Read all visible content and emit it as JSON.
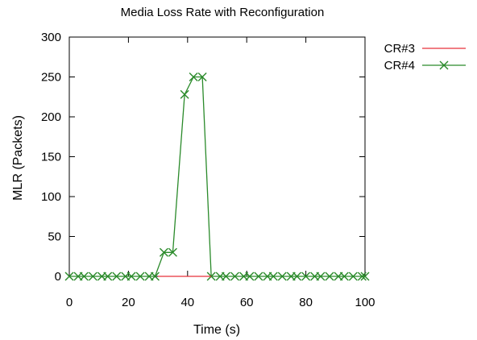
{
  "chart_data": {
    "type": "line",
    "title": "Media Loss Rate with Reconfiguration",
    "xlabel": "Time (s)",
    "ylabel": "MLR (Packets)",
    "xlim": [
      0,
      100
    ],
    "ylim": [
      0,
      300
    ],
    "xticks": [
      0,
      20,
      40,
      60,
      80,
      100
    ],
    "yticks": [
      0,
      50,
      100,
      150,
      200,
      250,
      300
    ],
    "grid": false,
    "legend_position": "top-right, outside plot",
    "series": [
      {
        "name": "CR#3",
        "color": "#e8313a",
        "marker": "none",
        "x": [
          30,
          48
        ],
        "y": [
          0,
          0
        ]
      },
      {
        "name": "CR#4",
        "color": "#2a8a2a",
        "marker": "x",
        "x": [
          0,
          3,
          5,
          8,
          11,
          13,
          16,
          19,
          21,
          24,
          27,
          29,
          32,
          35,
          39,
          42,
          45,
          48,
          51,
          53,
          56,
          59,
          61,
          64,
          67,
          69,
          72,
          75,
          77,
          80,
          83,
          85,
          88,
          91,
          93,
          96,
          99,
          100
        ],
        "y": [
          0,
          0,
          0,
          0,
          0,
          0,
          0,
          0,
          0,
          0,
          0,
          0,
          30,
          30,
          228,
          250,
          250,
          0,
          0,
          0,
          0,
          0,
          0,
          0,
          0,
          0,
          0,
          0,
          0,
          0,
          0,
          0,
          0,
          0,
          0,
          0,
          0,
          0
        ]
      }
    ]
  }
}
